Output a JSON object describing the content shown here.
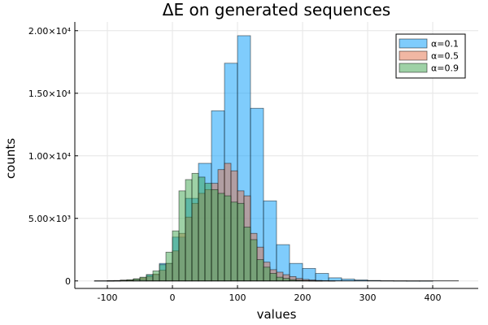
{
  "chart_data": {
    "type": "bar",
    "title": "ΔE on generated sequences",
    "xlabel": "values",
    "ylabel": "counts",
    "xlim": [
      -150,
      470
    ],
    "ylim": [
      -600,
      20700
    ],
    "grid": true,
    "legend_position": "top-right",
    "x_ticks": [
      -100,
      0,
      100,
      200,
      300,
      400
    ],
    "x_tick_labels": [
      "-100",
      "0",
      "100",
      "200",
      "300",
      "400"
    ],
    "y_ticks": [
      0,
      5000,
      10000,
      15000,
      20000
    ],
    "y_tick_labels": [
      "0",
      "5.00×10³",
      "1.00×10⁴",
      "1.50×10⁴",
      "2.00×10⁴"
    ],
    "series": [
      {
        "name": "α=0.1",
        "color": "#009AFA",
        "bins": [
          [
            -120,
            -100,
            10
          ],
          [
            -100,
            -80,
            20
          ],
          [
            -80,
            -60,
            40
          ],
          [
            -60,
            -40,
            150
          ],
          [
            -40,
            -20,
            500
          ],
          [
            -20,
            0,
            1400
          ],
          [
            0,
            20,
            3500
          ],
          [
            20,
            40,
            6600
          ],
          [
            40,
            60,
            9400
          ],
          [
            60,
            80,
            13600
          ],
          [
            80,
            100,
            17400
          ],
          [
            100,
            120,
            19600
          ],
          [
            120,
            140,
            13800
          ],
          [
            140,
            160,
            6400
          ],
          [
            160,
            180,
            2900
          ],
          [
            180,
            200,
            1400
          ],
          [
            200,
            220,
            1000
          ],
          [
            220,
            240,
            600
          ],
          [
            240,
            260,
            250
          ],
          [
            260,
            280,
            150
          ],
          [
            280,
            300,
            80
          ],
          [
            300,
            320,
            40
          ],
          [
            320,
            340,
            20
          ],
          [
            340,
            360,
            10
          ],
          [
            360,
            380,
            5
          ],
          [
            380,
            400,
            5
          ]
        ]
      },
      {
        "name": "α=0.5",
        "color": "#E36F47",
        "bins": [
          [
            -100,
            -90,
            20
          ],
          [
            -90,
            -80,
            30
          ],
          [
            -80,
            -70,
            60
          ],
          [
            -70,
            -60,
            80
          ],
          [
            -60,
            -50,
            150
          ],
          [
            -50,
            -40,
            250
          ],
          [
            -40,
            -30,
            350
          ],
          [
            -30,
            -20,
            550
          ],
          [
            -20,
            -10,
            850
          ],
          [
            -10,
            0,
            1400
          ],
          [
            0,
            10,
            2400
          ],
          [
            10,
            20,
            3800
          ],
          [
            20,
            30,
            5100
          ],
          [
            30,
            40,
            6200
          ],
          [
            40,
            50,
            7000
          ],
          [
            50,
            60,
            7300
          ],
          [
            60,
            70,
            7800
          ],
          [
            70,
            80,
            8900
          ],
          [
            80,
            90,
            9400
          ],
          [
            90,
            100,
            8800
          ],
          [
            100,
            110,
            7200
          ],
          [
            110,
            120,
            6800
          ],
          [
            120,
            130,
            3800
          ],
          [
            130,
            140,
            2700
          ],
          [
            140,
            150,
            1500
          ],
          [
            150,
            160,
            900
          ],
          [
            160,
            170,
            700
          ],
          [
            170,
            180,
            500
          ],
          [
            180,
            190,
            350
          ],
          [
            190,
            200,
            200
          ],
          [
            200,
            210,
            120
          ],
          [
            210,
            220,
            80
          ],
          [
            220,
            230,
            40
          ],
          [
            230,
            240,
            20
          ],
          [
            240,
            250,
            10
          ]
        ]
      },
      {
        "name": "α=0.9",
        "color": "#3EA44E",
        "bins": [
          [
            -100,
            -90,
            20
          ],
          [
            -90,
            -80,
            30
          ],
          [
            -80,
            -70,
            60
          ],
          [
            -70,
            -60,
            90
          ],
          [
            -60,
            -50,
            170
          ],
          [
            -50,
            -40,
            300
          ],
          [
            -40,
            -30,
            500
          ],
          [
            -30,
            -20,
            800
          ],
          [
            -20,
            -10,
            1300
          ],
          [
            -10,
            0,
            2300
          ],
          [
            0,
            10,
            4000
          ],
          [
            10,
            20,
            7200
          ],
          [
            20,
            30,
            8100
          ],
          [
            30,
            40,
            8600
          ],
          [
            40,
            50,
            8300
          ],
          [
            50,
            60,
            7800
          ],
          [
            60,
            70,
            7300
          ],
          [
            70,
            80,
            7000
          ],
          [
            80,
            90,
            6800
          ],
          [
            90,
            100,
            6300
          ],
          [
            100,
            110,
            6200
          ],
          [
            110,
            120,
            4300
          ],
          [
            120,
            130,
            3300
          ],
          [
            130,
            140,
            1700
          ],
          [
            140,
            150,
            1100
          ],
          [
            150,
            160,
            600
          ],
          [
            160,
            170,
            300
          ],
          [
            170,
            180,
            200
          ],
          [
            180,
            190,
            100
          ],
          [
            190,
            200,
            60
          ],
          [
            200,
            210,
            30
          ],
          [
            210,
            220,
            15
          ],
          [
            220,
            230,
            10
          ]
        ]
      }
    ],
    "baseline_line": {
      "x_start": -120,
      "x_end": 440,
      "color": "#000000"
    }
  }
}
